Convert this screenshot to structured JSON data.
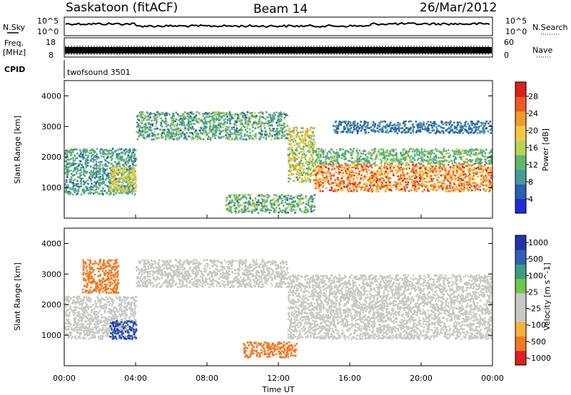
{
  "header": {
    "station": "Saskatoon (fitACF)",
    "beam": "Beam 14",
    "date": "26/Mar/2012"
  },
  "noise_panel": {
    "left_label": "N.Sky",
    "right_label": "N.Search",
    "ticks_left": [
      "10^5",
      "10^0"
    ],
    "ticks_right": [
      "10^5",
      "10^0"
    ]
  },
  "freq_panel": {
    "left_label_line1": "Freq.",
    "left_label_line2": "[MHz]",
    "right_label": "Nave",
    "ticks_left": [
      "18",
      "8"
    ],
    "ticks_right": [
      "60",
      "0"
    ]
  },
  "cpid_panel": {
    "label": "CPID",
    "value": "twofsound 3501"
  },
  "x_axis": {
    "label": "Time UT",
    "ticks": [
      "00:00",
      "04:00",
      "08:00",
      "12:00",
      "16:00",
      "20:00",
      "00:00"
    ]
  },
  "power_panel": {
    "ylabel": "Slant Range [km]",
    "yticks": [
      "1000",
      "2000",
      "3000",
      "4000"
    ],
    "colorbar_label": "Power [dB]",
    "colorbar_ticks": [
      "4",
      "8",
      "12",
      "16",
      "20",
      "24",
      "28"
    ],
    "colorbar_colors": [
      "#1f2bd8",
      "#2a5fb0",
      "#4a9a9a",
      "#62b86a",
      "#b9d25a",
      "#f4c842",
      "#f29a2e",
      "#ef5a22",
      "#e0201e"
    ]
  },
  "velocity_panel": {
    "ylabel": "Slant Range [km]",
    "yticks": [
      "1000",
      "2000",
      "3000",
      "4000"
    ],
    "colorbar_label": "Velocity [m s^-1]",
    "colorbar_ticks": [
      "1000",
      "500",
      "100",
      "25",
      "-25",
      "-100",
      "-500",
      "-1000"
    ],
    "colorbar_colors": [
      "#2233aa",
      "#2f60b8",
      "#3f9a7e",
      "#6fc64a",
      "#c8c8c4",
      "#c8c8c4",
      "#f4b23a",
      "#ef7a22",
      "#e0201e"
    ]
  },
  "chart_data": [
    {
      "type": "heatmap",
      "title": "Power",
      "xlabel": "Time UT",
      "ylabel": "Slant Range [km]",
      "xlim": [
        0,
        24
      ],
      "ylim": [
        0,
        4500
      ],
      "colorbar_label": "Power [dB]",
      "scale_range": [
        0,
        32
      ],
      "regions": [
        {
          "t": [
            0.0,
            4.0
          ],
          "range_km": [
            800,
            2300
          ],
          "power_db": [
            6,
            14
          ]
        },
        {
          "t": [
            2.5,
            4.0
          ],
          "range_km": [
            900,
            1700
          ],
          "power_db": [
            14,
            22
          ]
        },
        {
          "t": [
            4.0,
            12.5
          ],
          "range_km": [
            2600,
            3500
          ],
          "power_db": [
            6,
            16
          ]
        },
        {
          "t": [
            12.5,
            14.0
          ],
          "range_km": [
            1200,
            3000
          ],
          "power_db": [
            10,
            24
          ]
        },
        {
          "t": [
            14.0,
            24.0
          ],
          "range_km": [
            900,
            1800
          ],
          "power_db": [
            18,
            30
          ]
        },
        {
          "t": [
            14.0,
            24.0
          ],
          "range_km": [
            1800,
            2300
          ],
          "power_db": [
            8,
            16
          ]
        },
        {
          "t": [
            15.0,
            24.0
          ],
          "range_km": [
            2800,
            3200
          ],
          "power_db": [
            4,
            10
          ]
        },
        {
          "t": [
            9.0,
            14.0
          ],
          "range_km": [
            200,
            800
          ],
          "power_db": [
            6,
            18
          ]
        }
      ]
    },
    {
      "type": "heatmap",
      "title": "Velocity",
      "xlabel": "Time UT",
      "ylabel": "Slant Range [km]",
      "xlim": [
        0,
        24
      ],
      "ylim": [
        0,
        4500
      ],
      "colorbar_label": "Velocity [m s^-1]",
      "scale_range": [
        -1000,
        1000
      ],
      "regions": [
        {
          "t": [
            0.0,
            4.0
          ],
          "range_km": [
            900,
            2300
          ],
          "velocity_ms": [
            -25,
            25
          ]
        },
        {
          "t": [
            2.5,
            4.0
          ],
          "range_km": [
            900,
            1500
          ],
          "velocity_ms": [
            100,
            1000
          ]
        },
        {
          "t": [
            1.0,
            3.0
          ],
          "range_km": [
            2400,
            3500
          ],
          "velocity_ms": [
            -500,
            -100
          ]
        },
        {
          "t": [
            4.0,
            12.5
          ],
          "range_km": [
            2600,
            3500
          ],
          "velocity_ms": [
            -25,
            25
          ]
        },
        {
          "t": [
            12.5,
            24.0
          ],
          "range_km": [
            900,
            3000
          ],
          "velocity_ms": [
            -25,
            25
          ]
        },
        {
          "t": [
            10.0,
            13.0
          ],
          "range_km": [
            300,
            800
          ],
          "velocity_ms": [
            -500,
            -100
          ]
        }
      ]
    }
  ]
}
